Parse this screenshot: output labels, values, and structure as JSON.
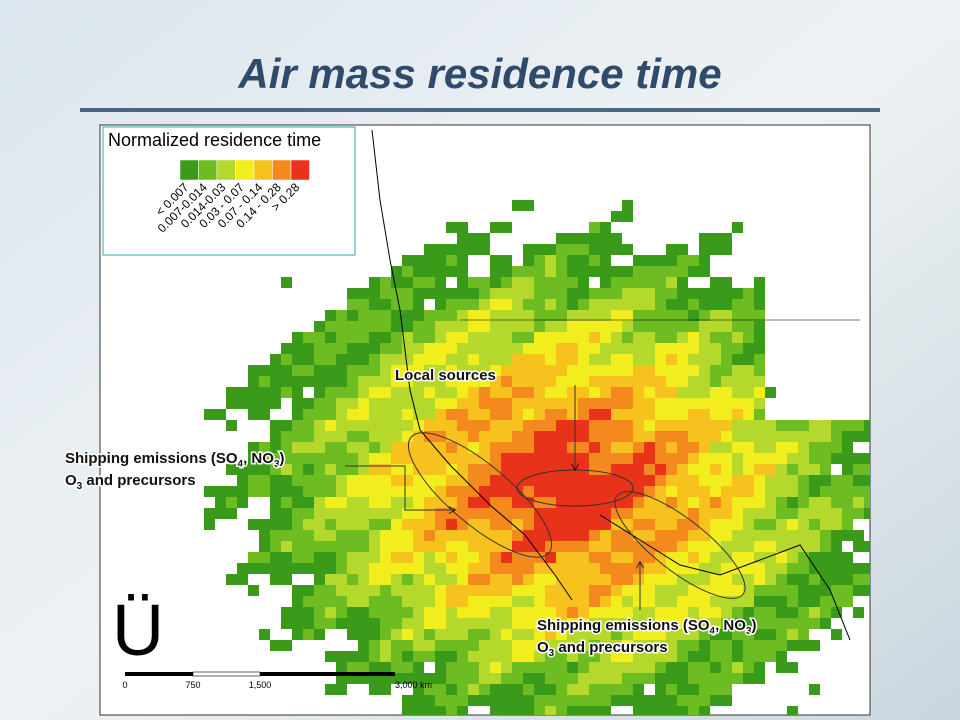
{
  "title": "Air mass residence time",
  "legend": {
    "title": "Normalized residence time",
    "colors": [
      "#3a9a1a",
      "#6cbc22",
      "#b4d82c",
      "#f2ee1e",
      "#f8c21e",
      "#f48a1e",
      "#e8321a"
    ],
    "labels": [
      "< 0.007",
      "0.007-0.014",
      "0.014-0.03",
      "0.03 - 0.07",
      "0.07 - 0.14",
      "0.14 - 0.28",
      "> 0.28"
    ]
  },
  "annotations": {
    "local": "Local sources",
    "shipping_west": {
      "line1": [
        "Shipping emissions (SO",
        "4",
        ", NO",
        "3",
        ")"
      ],
      "line2": [
        "O",
        "3",
        " and precursors"
      ]
    },
    "shipping_east": {
      "line1": [
        "Shipping emissions (SO",
        "4",
        ", NO",
        "3",
        ")"
      ],
      "line2": [
        "O",
        "3",
        " and precursors"
      ]
    }
  },
  "north_arrow": "Ü",
  "scale_bar": {
    "labels": [
      "0",
      "750",
      "1,500",
      "3,000 km"
    ]
  }
}
